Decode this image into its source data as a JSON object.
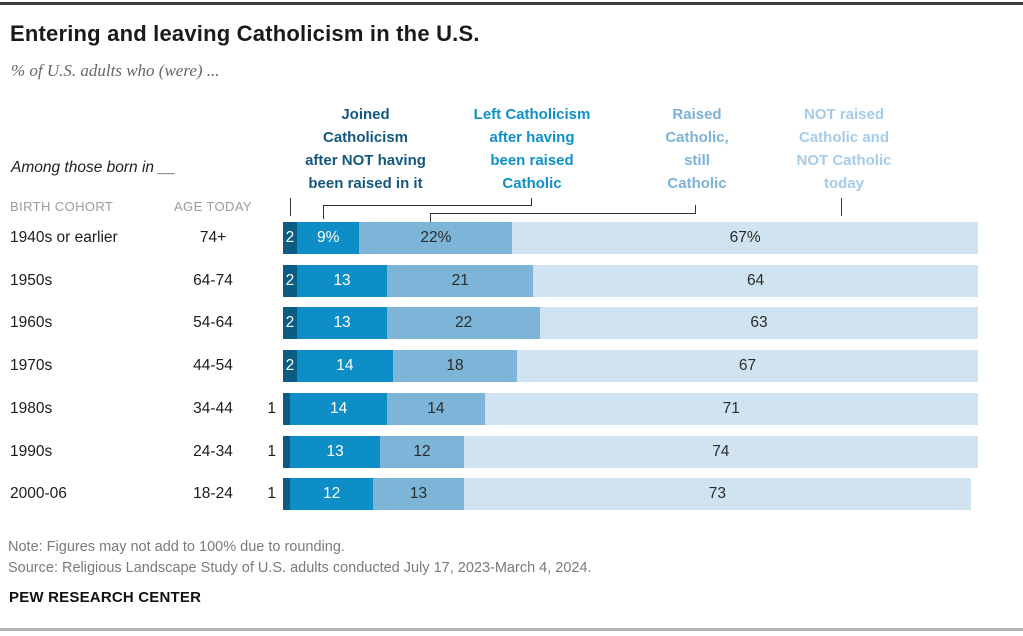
{
  "title": "Entering and leaving Catholicism in the U.S.",
  "subtitle": "% of U.S. adults who (were) ...",
  "intro_label": "Among those born in __",
  "table_headers": {
    "birth_cohort": "BIRTH COHORT",
    "age_today": "AGE TODAY"
  },
  "legend": {
    "joined": "Joined\nCatholicism\nafter NOT having\nbeen raised in it",
    "left": "Left Catholicism\nafter having\nbeen raised\nCatholic",
    "still": "Raised\nCatholic,\nstill\nCatholic",
    "not_raised": "NOT raised\nCatholic and\nNOT Catholic\ntoday"
  },
  "colors": {
    "segment": [
      "#0b5c83",
      "#0d8ec7",
      "#7db5d8",
      "#d0e3f1"
    ],
    "header_text": [
      "#14587e",
      "#1090c9",
      "#7cb2d7",
      "#a6cbe8"
    ],
    "segment_label_light": "#ffffff",
    "segment_label_dark": "#2b2b2b"
  },
  "chart_data": {
    "type": "bar",
    "orientation": "horizontal-stacked",
    "xlim": [
      0,
      100
    ],
    "series_labels": [
      "Joined Catholicism after NOT having been raised in it",
      "Left Catholicism after having been raised Catholic",
      "Raised Catholic, still Catholic",
      "NOT raised Catholic and NOT Catholic today"
    ],
    "rows": [
      {
        "cohort": "1940s or earlier",
        "age": "74+",
        "values": [
          2,
          9,
          22,
          67
        ],
        "labels": [
          "2",
          "9%",
          "22%",
          "67%"
        ],
        "first_label_outside": false
      },
      {
        "cohort": "1950s",
        "age": "64-74",
        "values": [
          2,
          13,
          21,
          64
        ],
        "labels": [
          "2",
          "13",
          "21",
          "64"
        ],
        "first_label_outside": false
      },
      {
        "cohort": "1960s",
        "age": "54-64",
        "values": [
          2,
          13,
          22,
          63
        ],
        "labels": [
          "2",
          "13",
          "22",
          "63"
        ],
        "first_label_outside": false
      },
      {
        "cohort": "1970s",
        "age": "44-54",
        "values": [
          2,
          14,
          18,
          67
        ],
        "labels": [
          "2",
          "14",
          "18",
          "67"
        ],
        "first_label_outside": false
      },
      {
        "cohort": "1980s",
        "age": "34-44",
        "values": [
          1,
          14,
          14,
          71
        ],
        "labels": [
          "1",
          "14",
          "14",
          "71"
        ],
        "first_label_outside": true
      },
      {
        "cohort": "1990s",
        "age": "24-34",
        "values": [
          1,
          13,
          12,
          74
        ],
        "labels": [
          "1",
          "13",
          "12",
          "74"
        ],
        "first_label_outside": true
      },
      {
        "cohort": "2000-06",
        "age": "18-24",
        "values": [
          1,
          12,
          13,
          73
        ],
        "labels": [
          "1",
          "12",
          "13",
          "73"
        ],
        "first_label_outside": true
      }
    ]
  },
  "note": "Note: Figures may not add to 100% due to rounding.",
  "source": "Source: Religious Landscape Study of U.S. adults conducted July 17, 2023-March 4, 2024.",
  "brand": "PEW RESEARCH CENTER"
}
